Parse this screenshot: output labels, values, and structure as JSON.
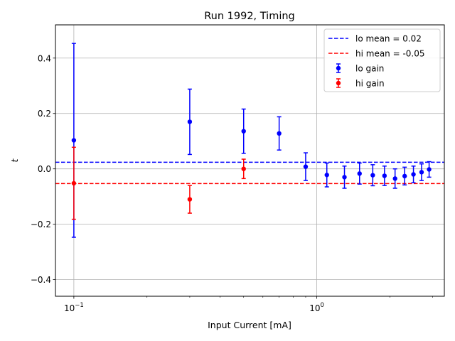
{
  "chart_data": {
    "type": "scatter",
    "title": "Run 1992, Timing",
    "xlabel": "Input Current [mA]",
    "ylabel": "t",
    "x_scale": "log",
    "xlim": [
      0.084,
      3.35
    ],
    "ylim": [
      -0.46,
      0.52
    ],
    "grid": true,
    "legend_position": "top-right",
    "y_ticks": [
      0.4,
      0.2,
      0.0,
      -0.2,
      -0.4
    ],
    "y_tick_labels": [
      "0.4",
      "0.2",
      "0.0",
      "−0.2",
      "−0.4"
    ],
    "x_major_ticks": [
      0.1,
      1
    ],
    "x_minor_ticks": [
      0.2,
      0.3,
      0.4,
      0.5,
      0.6,
      0.7,
      0.8,
      0.9,
      2,
      3
    ],
    "colors": {
      "lo": "#0000ff",
      "hi": "#ff0000"
    },
    "series": [
      {
        "name": "lo gain",
        "key": "lo",
        "points": [
          {
            "x": 0.1,
            "y": 0.103,
            "err": 0.35
          },
          {
            "x": 0.3,
            "y": 0.17,
            "err": 0.118
          },
          {
            "x": 0.5,
            "y": 0.136,
            "err": 0.08
          },
          {
            "x": 0.7,
            "y": 0.128,
            "err": 0.06
          },
          {
            "x": 0.9,
            "y": 0.008,
            "err": 0.05
          },
          {
            "x": 1.1,
            "y": -0.022,
            "err": 0.043
          },
          {
            "x": 1.3,
            "y": -0.03,
            "err": 0.04
          },
          {
            "x": 1.5,
            "y": -0.017,
            "err": 0.038
          },
          {
            "x": 1.7,
            "y": -0.023,
            "err": 0.038
          },
          {
            "x": 1.9,
            "y": -0.025,
            "err": 0.035
          },
          {
            "x": 2.1,
            "y": -0.035,
            "err": 0.035
          },
          {
            "x": 2.3,
            "y": -0.026,
            "err": 0.032
          },
          {
            "x": 2.5,
            "y": -0.02,
            "err": 0.03
          },
          {
            "x": 2.7,
            "y": -0.012,
            "err": 0.03
          },
          {
            "x": 2.9,
            "y": -0.002,
            "err": 0.028
          }
        ]
      },
      {
        "name": "hi gain",
        "key": "hi",
        "points": [
          {
            "x": 0.1,
            "y": -0.052,
            "err": 0.13
          },
          {
            "x": 0.3,
            "y": -0.11,
            "err": 0.05
          },
          {
            "x": 0.5,
            "y": 0.0,
            "err": 0.035
          }
        ]
      }
    ],
    "reference_lines": [
      {
        "name": "lo mean = 0.02",
        "key": "lo",
        "y": 0.024
      },
      {
        "name": "hi mean = -0.05",
        "key": "hi",
        "y": -0.053
      }
    ]
  }
}
